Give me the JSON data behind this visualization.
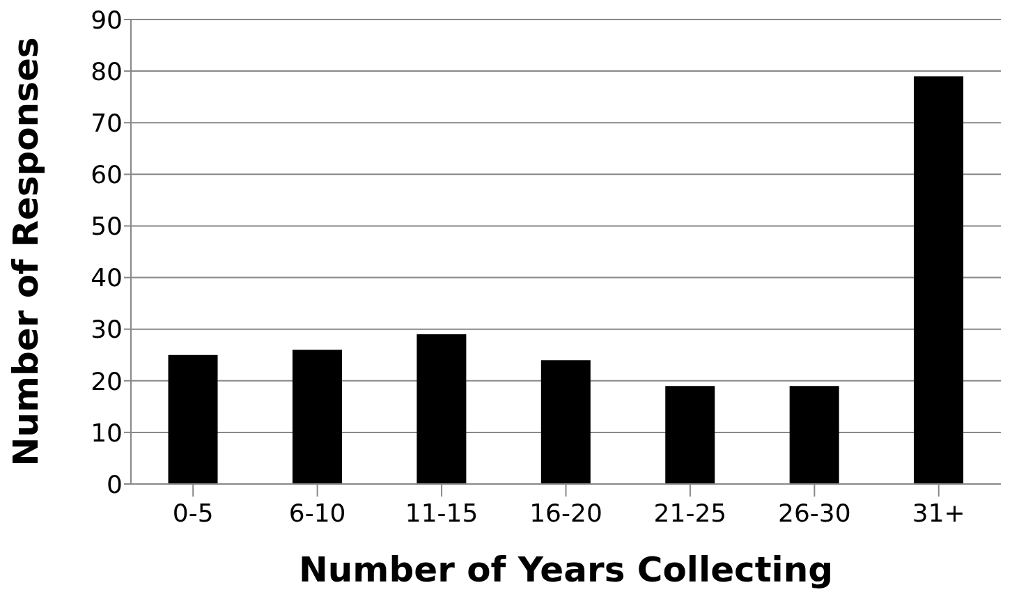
{
  "chart_data": {
    "type": "bar",
    "xlabel": "Number of Years Collecting",
    "ylabel": "Number of Responses",
    "categories": [
      "0-5",
      "6-10",
      "11-15",
      "16-20",
      "21-25",
      "26-30",
      "31+"
    ],
    "values": [
      25,
      26,
      29,
      24,
      19,
      19,
      79
    ],
    "color": "#000000",
    "ylim": [
      0,
      90
    ],
    "yticks": [
      0,
      10,
      20,
      30,
      40,
      50,
      60,
      70,
      80,
      90
    ],
    "grid": "y"
  }
}
